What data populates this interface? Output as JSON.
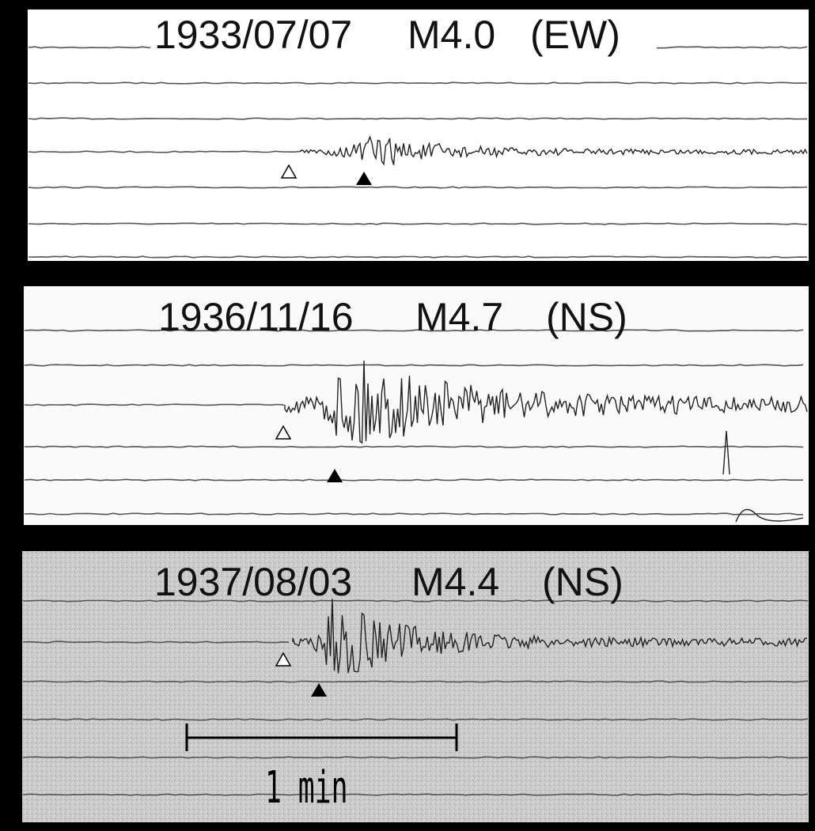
{
  "panels": [
    {
      "date": "1933/07/07",
      "magnitude": "M4.0",
      "component": "(EW)"
    },
    {
      "date": "1936/11/16",
      "magnitude": "M4.7",
      "component": "(NS)"
    },
    {
      "date": "1937/08/03",
      "magnitude": "M4.4",
      "component": "(NS)"
    }
  ],
  "scale_bar": {
    "label": "1 min"
  }
}
